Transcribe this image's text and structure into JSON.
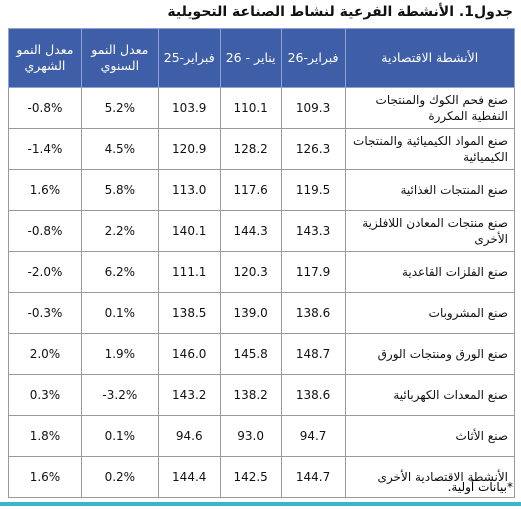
{
  "title": "جدول1. الأنشطة الفرعية لنشاط الصناعة التحويلية",
  "table": {
    "headers": [
      "الأنشطة الاقتصادية",
      "فبراير-26",
      "يناير - 26",
      "فبراير-25",
      "معدل النمو السنوي",
      "معدل النمو الشهري"
    ],
    "rows": [
      [
        "صنع فحم الكوك والمنتجات النفطية المكررة",
        "109.3",
        "110.1",
        "103.9",
        "5.2%",
        "-0.8%"
      ],
      [
        "صنع المواد الكيميائية والمنتجات الكيميائية",
        "126.3",
        "128.2",
        "120.9",
        "4.5%",
        "-1.4%"
      ],
      [
        "صنع المنتجات الغذائية",
        "119.5",
        "117.6",
        "113.0",
        "5.8%",
        "1.6%"
      ],
      [
        "صنع منتجات المعادن اللافلزية الأخرى",
        "143.3",
        "144.3",
        "140.1",
        "2.2%",
        "-0.8%"
      ],
      [
        "صنع الفلزات القاعدية",
        "117.9",
        "120.3",
        "111.1",
        "6.2%",
        "-2.0%"
      ],
      [
        "صنع المشروبات",
        "138.6",
        "139.0",
        "138.5",
        "0.1%",
        "-0.3%"
      ],
      [
        "صنع الورق ومنتجات الورق",
        "148.7",
        "145.8",
        "146.0",
        "1.9%",
        "2.0%"
      ],
      [
        "صنع المعدات الكهربائية",
        "138.6",
        "138.2",
        "143.2",
        "-3.2%",
        "0.3%"
      ],
      [
        "صنع الأثاث",
        "94.7",
        "93.0",
        "94.6",
        "0.1%",
        "1.8%"
      ],
      [
        "الأنشطة الاقتصادية الأخرى",
        "144.7",
        "142.5",
        "144.4",
        "0.2%",
        "1.6%"
      ]
    ]
  },
  "footnote": "*بيانات أولية."
}
